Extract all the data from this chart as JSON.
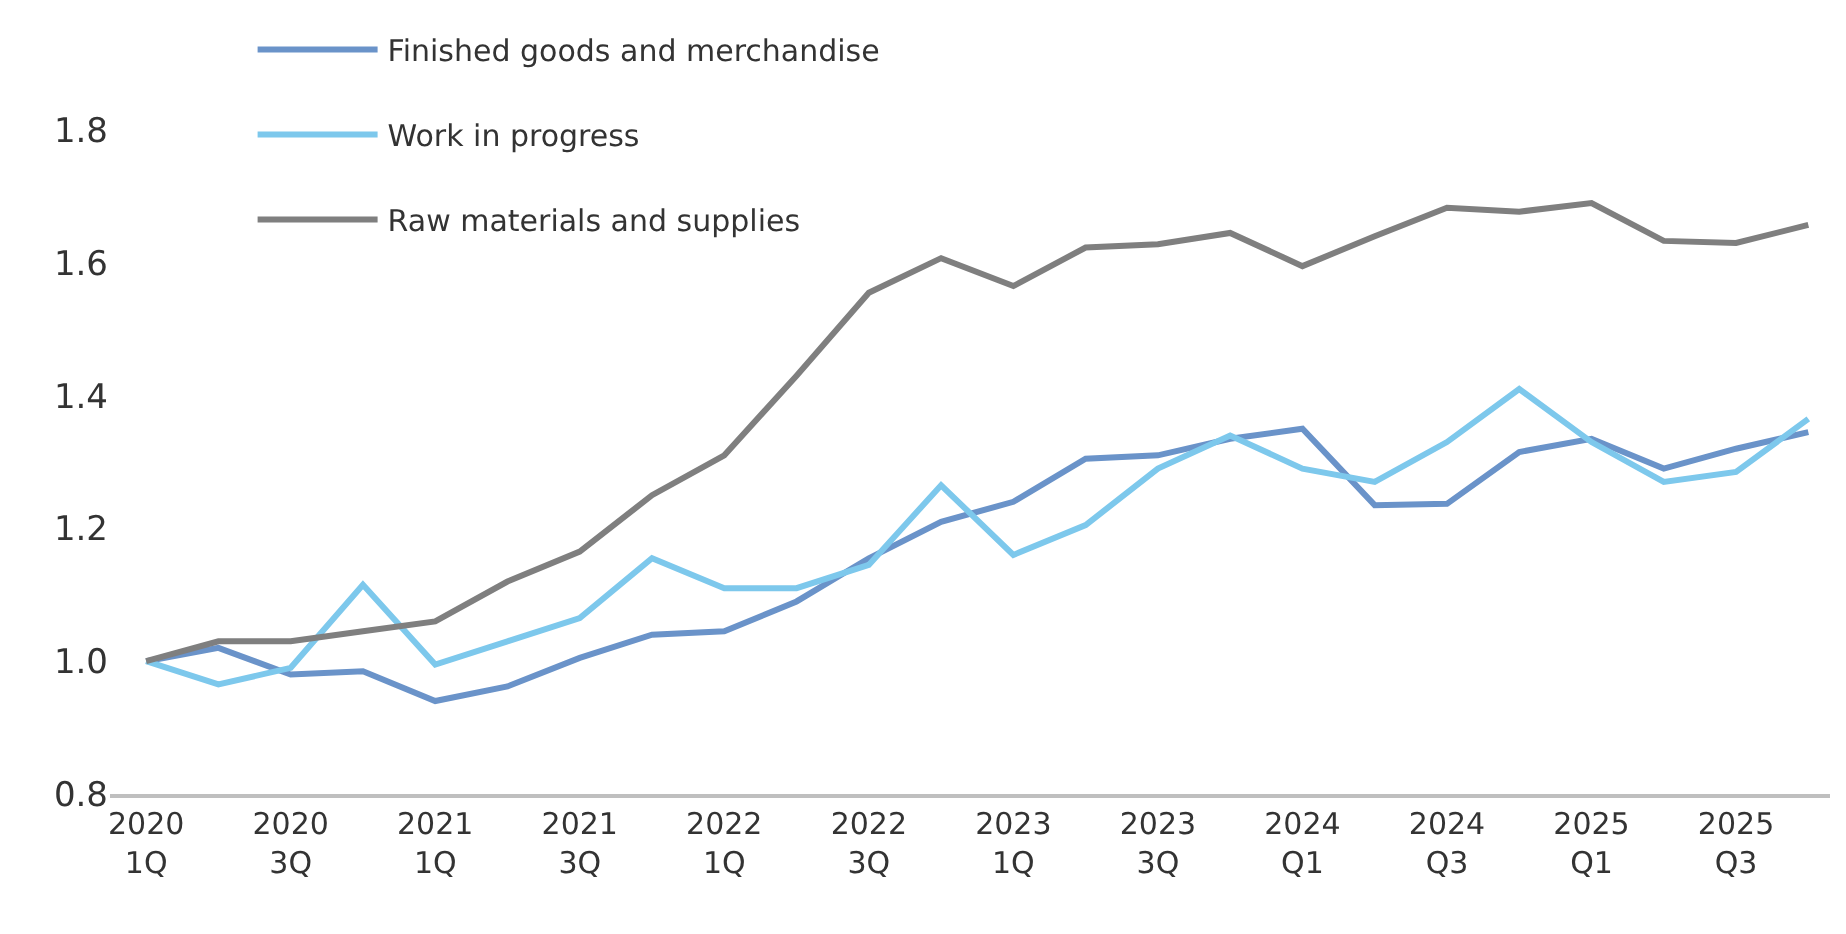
{
  "chart_data": {
    "type": "line",
    "categories": [
      "2020\n1Q",
      null,
      "2020\n3Q",
      null,
      "2021\n1Q",
      null,
      "2021\n3Q",
      null,
      "2022\n1Q",
      null,
      "2022\n3Q",
      null,
      "2023\n1Q",
      null,
      "2023\n3Q",
      null,
      "2024\nQ1",
      null,
      "2024\nQ3",
      null,
      "2025\nQ1",
      null,
      "2025\nQ3",
      null
    ],
    "series": [
      {
        "name": "Finished goods and merchandise",
        "color": "#6a93c9",
        "values": [
          1.0,
          1.02,
          0.98,
          0.985,
          0.94,
          0.962,
          1.005,
          1.04,
          1.045,
          1.09,
          1.155,
          1.21,
          1.24,
          1.305,
          1.31,
          1.335,
          1.35,
          1.235,
          1.237,
          1.315,
          1.335,
          1.29,
          1.32,
          1.345
        ]
      },
      {
        "name": "Work in progress",
        "color": "#7dc8ec",
        "values": [
          1.0,
          0.965,
          0.99,
          1.115,
          0.995,
          1.03,
          1.065,
          1.155,
          1.11,
          1.11,
          1.145,
          1.265,
          1.16,
          1.205,
          1.29,
          1.34,
          1.29,
          1.27,
          1.33,
          1.41,
          1.33,
          1.27,
          1.285,
          1.365
        ]
      },
      {
        "name": "Raw materials and supplies",
        "color": "#7f7f7f",
        "values": [
          1.0,
          1.03,
          1.03,
          1.045,
          1.06,
          1.12,
          1.165,
          1.25,
          1.31,
          1.43,
          1.555,
          1.607,
          1.565,
          1.623,
          1.628,
          1.645,
          1.595,
          1.64,
          1.683,
          1.677,
          1.69,
          1.633,
          1.63,
          1.657
        ]
      }
    ],
    "ylim": [
      0.8,
      1.8
    ],
    "yticks": [
      0.8,
      {
        "value": 1,
        "label": "1.0"
      },
      1.2,
      1.4,
      1.6,
      1.8
    ],
    "grid": false,
    "legend": "top left",
    "marker": "none",
    "line_style": "solid"
  }
}
